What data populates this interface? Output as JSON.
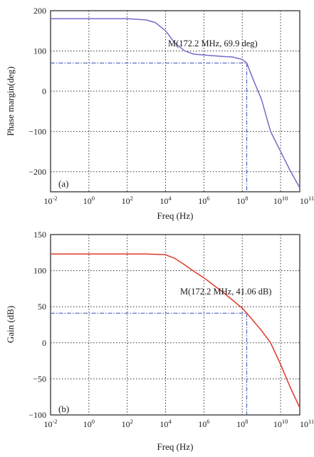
{
  "chart_data": [
    {
      "type": "line",
      "panel_label": "(a)",
      "xlabel": "Freq (Hz)",
      "ylabel": "Phase margin(deg)",
      "xscale": "log",
      "xlim": [
        0.01,
        100000000000
      ],
      "ylim": [
        -250,
        200
      ],
      "grid": true,
      "xtick_exponents": [
        "-2",
        "0",
        "2",
        "4",
        "6",
        "8",
        "10",
        "11"
      ],
      "yticks": [
        200,
        100,
        0,
        -100,
        -200
      ],
      "line_color": "#7b68c8",
      "marker_color": "#3a4fb8",
      "series": [
        {
          "x": [
            0.01,
            1,
            100,
            1000,
            3000,
            10000,
            30000,
            100000,
            300000,
            1000000,
            10000000,
            30000000,
            100000000,
            172200000,
            300000000,
            600000000,
            1000000000,
            3000000000,
            10000000000,
            30000000000,
            100000000000
          ],
          "y": [
            180,
            180,
            180,
            177,
            170,
            150,
            120,
            100,
            92,
            90,
            86,
            85,
            79,
            69.9,
            40,
            5,
            -20,
            -100,
            -150,
            -195,
            -240
          ]
        }
      ],
      "marker": {
        "x": 172200000,
        "y": 69.9,
        "label": "M(172.2 MHz, 69.9 deg)"
      }
    },
    {
      "type": "line",
      "panel_label": "(b)",
      "xlabel": "Freq (Hz)",
      "ylabel": "Gain (dB)",
      "xscale": "log",
      "xlim": [
        0.01,
        100000000000
      ],
      "ylim": [
        -100,
        150
      ],
      "grid": true,
      "xtick_exponents": [
        "-2",
        "0",
        "2",
        "4",
        "6",
        "8",
        "10",
        "11"
      ],
      "yticks": [
        150,
        100,
        50,
        0,
        -50,
        -100
      ],
      "line_color": "#e0392b",
      "marker_color": "#3a4fb8",
      "series": [
        {
          "x": [
            0.01,
            1,
            100,
            1000,
            10000,
            30000,
            100000,
            300000,
            1000000,
            10000000,
            100000000,
            172200000,
            1000000000,
            3000000000,
            10000000000,
            30000000000,
            100000000000
          ],
          "y": [
            123,
            123,
            123,
            123,
            122,
            117,
            108,
            99,
            90,
            70,
            48,
            41.06,
            17,
            0,
            -30,
            -60,
            -90
          ]
        }
      ],
      "marker": {
        "x": 172200000,
        "y": 41.06,
        "label": "M(172.2 MHz, 41.06 dB)"
      }
    }
  ]
}
